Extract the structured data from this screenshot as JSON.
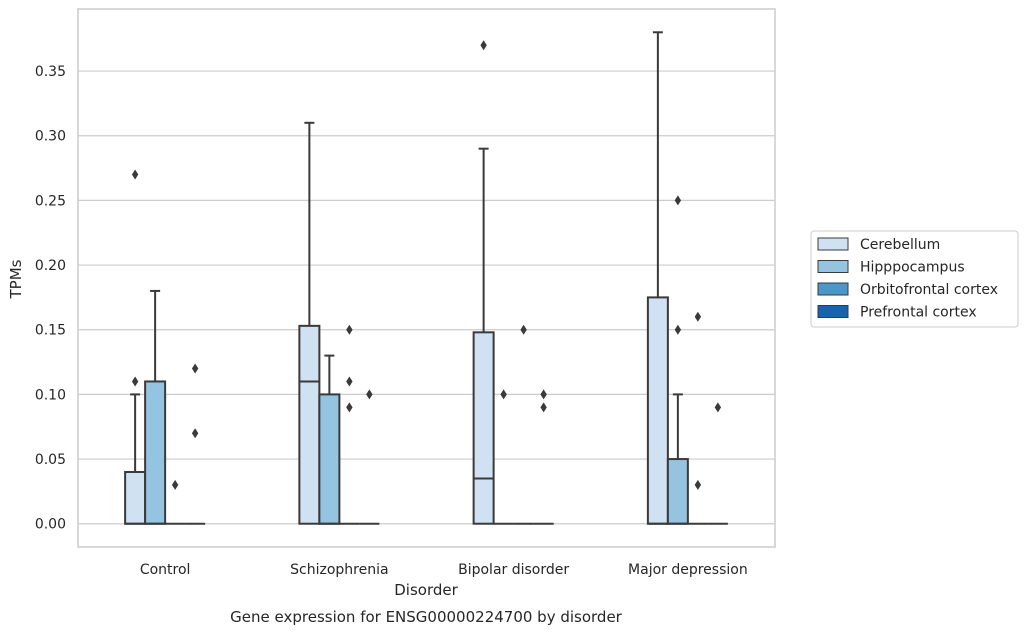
{
  "chart_data": {
    "type": "box",
    "title": "",
    "caption": "Gene expression for ENSG00000224700 by disorder",
    "xlabel": "Disorder",
    "ylabel": "TPMs",
    "ylim": [
      -0.018,
      0.398
    ],
    "yticks": [
      "0.00",
      "0.05",
      "0.10",
      "0.15",
      "0.20",
      "0.25",
      "0.30",
      "0.35"
    ],
    "grid": "horizontal",
    "legend_position": "right",
    "categories": [
      "Control",
      "Schizophrenia",
      "Bipolar disorder",
      "Major depression"
    ],
    "series": [
      {
        "name": "Cerebellum",
        "color": "#d0e1f2",
        "boxes": [
          {
            "q1": 0.0,
            "median": 0.0,
            "q3": 0.04,
            "whisker_low": 0.0,
            "whisker_high": 0.1,
            "outliers": [
              0.11,
              0.27
            ]
          },
          {
            "q1": 0.0,
            "median": 0.11,
            "q3": 0.153,
            "whisker_low": 0.0,
            "whisker_high": 0.31,
            "outliers": []
          },
          {
            "q1": 0.0,
            "median": 0.035,
            "q3": 0.148,
            "whisker_low": 0.0,
            "whisker_high": 0.29,
            "outliers": [
              0.37
            ]
          },
          {
            "q1": 0.0,
            "median": 0.0,
            "q3": 0.175,
            "whisker_low": 0.0,
            "whisker_high": 0.38,
            "outliers": []
          }
        ]
      },
      {
        "name": "Hipppocampus",
        "color": "#94c4df",
        "boxes": [
          {
            "q1": 0.0,
            "median": 0.0,
            "q3": 0.11,
            "whisker_low": 0.0,
            "whisker_high": 0.18,
            "outliers": []
          },
          {
            "q1": 0.0,
            "median": 0.0,
            "q3": 0.1,
            "whisker_low": 0.0,
            "whisker_high": 0.13,
            "outliers": []
          },
          {
            "q1": 0.0,
            "median": 0.0,
            "q3": 0.0,
            "whisker_low": 0.0,
            "whisker_high": 0.0,
            "outliers": [
              0.1
            ]
          },
          {
            "q1": 0.0,
            "median": 0.0,
            "q3": 0.05,
            "whisker_low": 0.0,
            "whisker_high": 0.1,
            "outliers": [
              0.15,
              0.25
            ]
          }
        ]
      },
      {
        "name": "Orbitofrontal cortex",
        "color": "#4a98c9",
        "boxes": [
          {
            "q1": 0.0,
            "median": 0.0,
            "q3": 0.0,
            "whisker_low": 0.0,
            "whisker_high": 0.0,
            "outliers": [
              0.03
            ]
          },
          {
            "q1": 0.0,
            "median": 0.0,
            "q3": 0.0,
            "whisker_low": 0.0,
            "whisker_high": 0.0,
            "outliers": [
              0.09,
              0.11,
              0.15
            ]
          },
          {
            "q1": 0.0,
            "median": 0.0,
            "q3": 0.0,
            "whisker_low": 0.0,
            "whisker_high": 0.0,
            "outliers": [
              0.15
            ]
          },
          {
            "q1": 0.0,
            "median": 0.0,
            "q3": 0.0,
            "whisker_low": 0.0,
            "whisker_high": 0.0,
            "outliers": [
              0.03,
              0.16
            ]
          }
        ]
      },
      {
        "name": "Prefrontal cortex",
        "color": "#1764ab",
        "boxes": [
          {
            "q1": 0.0,
            "median": 0.0,
            "q3": 0.0,
            "whisker_low": 0.0,
            "whisker_high": 0.0,
            "outliers": [
              0.07,
              0.12
            ]
          },
          {
            "q1": 0.0,
            "median": 0.0,
            "q3": 0.0,
            "whisker_low": 0.0,
            "whisker_high": 0.0,
            "outliers": [
              0.1
            ]
          },
          {
            "q1": 0.0,
            "median": 0.0,
            "q3": 0.0,
            "whisker_low": 0.0,
            "whisker_high": 0.0,
            "outliers": [
              0.09,
              0.1
            ]
          },
          {
            "q1": 0.0,
            "median": 0.0,
            "q3": 0.0,
            "whisker_low": 0.0,
            "whisker_high": 0.0,
            "outliers": [
              0.09
            ]
          }
        ]
      }
    ]
  }
}
